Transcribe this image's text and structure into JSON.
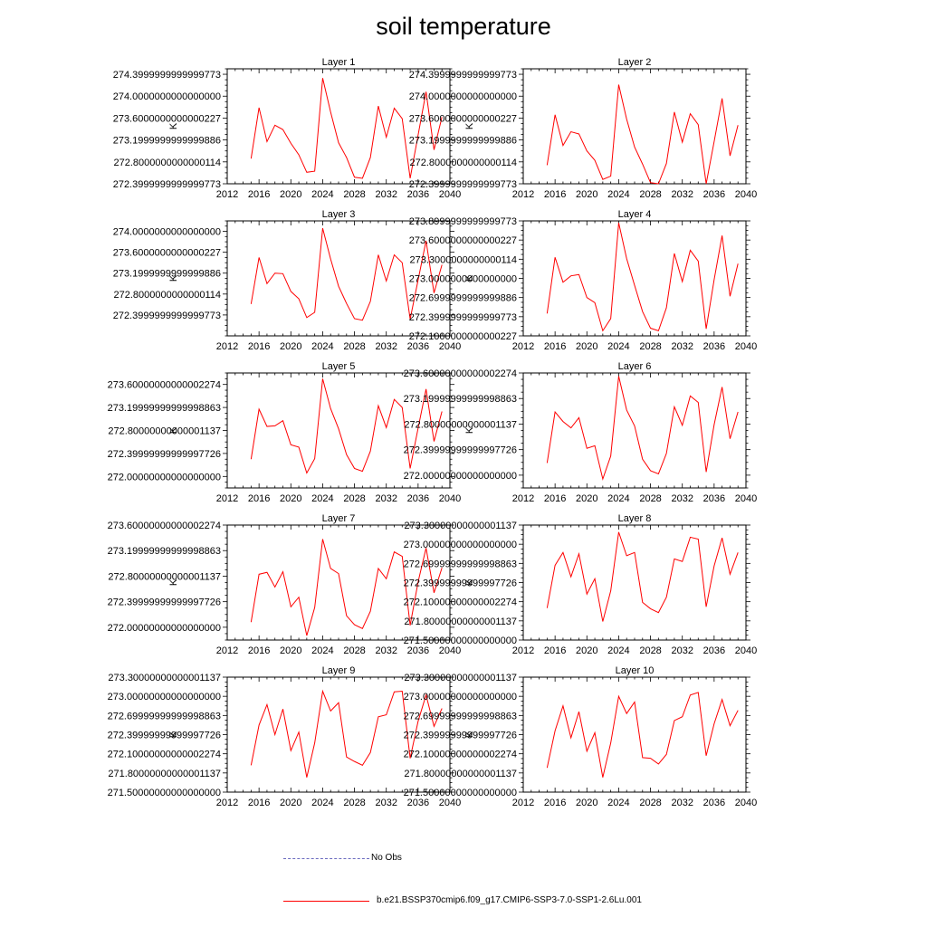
{
  "title": "soil temperature",
  "colors": {
    "model": "#ff0000",
    "obs": "#6b6bbf"
  },
  "legend": [
    {
      "label": "No Obs",
      "style": "dashed",
      "color": "#6b6bbf"
    },
    {
      "label": "b.e21.BSSP370cmip6.f09_g17.CMIP6-SSP3-7.0-SSP1-2.6Lu.001",
      "style": "solid",
      "color": "#ff0000"
    }
  ],
  "chart_data": [
    {
      "type": "line",
      "title": "Layer 1",
      "ylabel": "K",
      "xlim": [
        2012,
        2040
      ],
      "xticks": [
        2012,
        2016,
        2020,
        2024,
        2028,
        2032,
        2036,
        2040
      ],
      "ylim": [
        272.4,
        274.5
      ],
      "yticks": [
        272.4,
        272.8,
        273.2,
        273.6,
        274.0,
        274.4
      ],
      "x": [
        2015,
        2016,
        2017,
        2018,
        2019,
        2020,
        2021,
        2022,
        2023,
        2024,
        2025,
        2026,
        2027,
        2028,
        2029,
        2030,
        2031,
        2032,
        2033,
        2034,
        2035,
        2036,
        2037,
        2038,
        2039
      ],
      "series": [
        {
          "values": [
            272.86,
            273.79,
            273.17,
            273.47,
            273.39,
            273.14,
            272.93,
            272.61,
            272.63,
            274.33,
            273.71,
            273.15,
            272.88,
            272.52,
            272.5,
            272.88,
            273.82,
            273.25,
            273.78,
            273.59,
            272.5,
            273.29,
            274.08,
            273.02,
            273.62
          ]
        }
      ]
    },
    {
      "type": "line",
      "title": "Layer 2",
      "ylabel": "K",
      "xlim": [
        2012,
        2040
      ],
      "xticks": [
        2012,
        2016,
        2020,
        2024,
        2028,
        2032,
        2036,
        2040
      ],
      "ylim": [
        272.4,
        274.5
      ],
      "yticks": [
        272.4,
        272.8,
        273.2,
        273.6,
        274.0,
        274.4
      ],
      "x": [
        2015,
        2016,
        2017,
        2018,
        2019,
        2020,
        2021,
        2022,
        2023,
        2024,
        2025,
        2026,
        2027,
        2028,
        2029,
        2030,
        2031,
        2032,
        2033,
        2034,
        2035,
        2036,
        2037,
        2038,
        2039
      ],
      "series": [
        {
          "values": [
            272.74,
            273.66,
            273.1,
            273.35,
            273.31,
            273.0,
            272.83,
            272.48,
            272.54,
            274.21,
            273.58,
            273.07,
            272.76,
            272.42,
            272.4,
            272.77,
            273.71,
            273.16,
            273.68,
            273.48,
            272.4,
            273.17,
            273.96,
            272.91,
            273.47
          ]
        }
      ]
    },
    {
      "type": "line",
      "title": "Layer 3",
      "ylabel": "K",
      "xlim": [
        2012,
        2040
      ],
      "xticks": [
        2012,
        2016,
        2020,
        2024,
        2028,
        2032,
        2036,
        2040
      ],
      "ylim": [
        272.0,
        274.2
      ],
      "yticks": [
        272.4,
        272.8,
        273.2,
        273.6,
        274.0
      ],
      "x": [
        2015,
        2016,
        2017,
        2018,
        2019,
        2020,
        2021,
        2022,
        2023,
        2024,
        2025,
        2026,
        2027,
        2028,
        2029,
        2030,
        2031,
        2032,
        2033,
        2034,
        2035,
        2036,
        2037,
        2038,
        2039
      ],
      "series": [
        {
          "values": [
            272.61,
            273.5,
            273.0,
            273.2,
            273.19,
            272.85,
            272.71,
            272.35,
            272.45,
            274.06,
            273.47,
            272.95,
            272.62,
            272.33,
            272.3,
            272.66,
            273.55,
            273.05,
            273.55,
            273.4,
            272.32,
            273.07,
            273.82,
            272.82,
            273.36
          ]
        }
      ]
    },
    {
      "type": "line",
      "title": "Layer 4",
      "ylabel": "K",
      "xlim": [
        2012,
        2040
      ],
      "xticks": [
        2012,
        2016,
        2020,
        2024,
        2028,
        2032,
        2036,
        2040
      ],
      "ylim": [
        272.1,
        273.9
      ],
      "yticks": [
        272.1,
        272.4,
        272.7,
        273.0,
        273.3,
        273.6,
        273.9
      ],
      "x": [
        2015,
        2016,
        2017,
        2018,
        2019,
        2020,
        2021,
        2022,
        2023,
        2024,
        2025,
        2026,
        2027,
        2028,
        2029,
        2030,
        2031,
        2032,
        2033,
        2034,
        2035,
        2036,
        2037,
        2038,
        2039
      ],
      "series": [
        {
          "values": [
            272.45,
            273.33,
            272.94,
            273.04,
            273.06,
            272.7,
            272.62,
            272.18,
            272.37,
            273.87,
            273.31,
            272.89,
            272.48,
            272.22,
            272.18,
            272.54,
            273.39,
            272.95,
            273.44,
            273.27,
            272.21,
            272.98,
            273.67,
            272.72,
            273.23
          ]
        }
      ]
    },
    {
      "type": "line",
      "title": "Layer 5",
      "ylabel": "K",
      "xlim": [
        2012,
        2040
      ],
      "xticks": [
        2012,
        2016,
        2020,
        2024,
        2028,
        2032,
        2036,
        2040
      ],
      "ylim": [
        271.8,
        273.8
      ],
      "yticks": [
        272.0,
        272.4,
        272.8,
        273.2,
        273.6
      ],
      "x": [
        2015,
        2016,
        2017,
        2018,
        2019,
        2020,
        2021,
        2022,
        2023,
        2024,
        2025,
        2026,
        2027,
        2028,
        2029,
        2030,
        2031,
        2032,
        2033,
        2034,
        2035,
        2036,
        2037,
        2038,
        2039
      ],
      "series": [
        {
          "values": [
            272.3,
            273.17,
            272.87,
            272.88,
            272.97,
            272.55,
            272.51,
            272.06,
            272.31,
            273.7,
            273.18,
            272.83,
            272.38,
            272.14,
            272.09,
            272.44,
            273.23,
            272.85,
            273.34,
            273.2,
            272.14,
            272.84,
            273.52,
            272.61,
            273.13
          ]
        }
      ]
    },
    {
      "type": "line",
      "title": "Layer 6",
      "ylabel": "K",
      "xlim": [
        2012,
        2040
      ],
      "xticks": [
        2012,
        2016,
        2020,
        2024,
        2028,
        2032,
        2036,
        2040
      ],
      "ylim": [
        271.8,
        273.6
      ],
      "yticks": [
        272.0,
        272.4,
        272.8,
        273.2,
        273.6
      ],
      "x": [
        2015,
        2016,
        2017,
        2018,
        2019,
        2020,
        2021,
        2022,
        2023,
        2024,
        2025,
        2026,
        2027,
        2028,
        2029,
        2030,
        2031,
        2032,
        2033,
        2034,
        2035,
        2036,
        2037,
        2038,
        2039
      ],
      "series": [
        {
          "values": [
            272.19,
            272.99,
            272.84,
            272.74,
            272.9,
            272.42,
            272.46,
            271.94,
            272.3,
            273.55,
            273.02,
            272.77,
            272.25,
            272.07,
            272.02,
            272.34,
            273.07,
            272.78,
            273.24,
            273.14,
            272.05,
            272.79,
            273.38,
            272.57,
            272.99
          ]
        }
      ]
    },
    {
      "type": "line",
      "title": "Layer 7",
      "ylabel": "K",
      "xlim": [
        2012,
        2040
      ],
      "xticks": [
        2012,
        2016,
        2020,
        2024,
        2028,
        2032,
        2036,
        2040
      ],
      "ylim": [
        271.8,
        273.6
      ],
      "yticks": [
        272.0,
        272.4,
        272.8,
        273.2,
        273.6
      ],
      "x": [
        2015,
        2016,
        2017,
        2018,
        2019,
        2020,
        2021,
        2022,
        2023,
        2024,
        2025,
        2026,
        2027,
        2028,
        2029,
        2030,
        2031,
        2032,
        2033,
        2034,
        2035,
        2036,
        2037,
        2038,
        2039
      ],
      "series": [
        {
          "values": [
            272.08,
            272.83,
            272.86,
            272.63,
            272.87,
            272.32,
            272.47,
            271.87,
            272.31,
            273.38,
            272.92,
            272.84,
            272.18,
            272.04,
            271.98,
            272.25,
            272.92,
            272.76,
            273.18,
            273.11,
            272.03,
            272.71,
            273.24,
            272.54,
            272.93
          ]
        }
      ]
    },
    {
      "type": "line",
      "title": "Layer 8",
      "ylabel": "K",
      "xlim": [
        2012,
        2040
      ],
      "xticks": [
        2012,
        2016,
        2020,
        2024,
        2028,
        2032,
        2036,
        2040
      ],
      "ylim": [
        271.5,
        273.3
      ],
      "yticks": [
        271.5,
        271.8,
        272.1,
        272.4,
        272.7,
        273.0,
        273.3
      ],
      "x": [
        2015,
        2016,
        2017,
        2018,
        2019,
        2020,
        2021,
        2022,
        2023,
        2024,
        2025,
        2026,
        2027,
        2028,
        2029,
        2030,
        2031,
        2032,
        2033,
        2034,
        2035,
        2036,
        2037,
        2038,
        2039
      ],
      "series": [
        {
          "values": [
            272.0,
            272.67,
            272.87,
            272.49,
            272.85,
            272.22,
            272.46,
            271.79,
            272.27,
            273.19,
            272.82,
            272.87,
            272.09,
            271.99,
            271.93,
            272.17,
            272.77,
            272.73,
            273.11,
            273.08,
            272.02,
            272.66,
            273.1,
            272.53,
            272.87
          ]
        }
      ]
    },
    {
      "type": "line",
      "title": "Layer 9",
      "ylabel": "K",
      "xlim": [
        2012,
        2040
      ],
      "xticks": [
        2012,
        2016,
        2020,
        2024,
        2028,
        2032,
        2036,
        2040
      ],
      "ylim": [
        271.5,
        273.3
      ],
      "yticks": [
        271.5,
        271.8,
        272.1,
        272.4,
        272.7,
        273.0,
        273.3
      ],
      "x": [
        2015,
        2016,
        2017,
        2018,
        2019,
        2020,
        2021,
        2022,
        2023,
        2024,
        2025,
        2026,
        2027,
        2028,
        2029,
        2030,
        2031,
        2032,
        2033,
        2034,
        2035,
        2036,
        2037,
        2038,
        2039
      ],
      "series": [
        {
          "values": [
            271.92,
            272.55,
            272.87,
            272.4,
            272.8,
            272.15,
            272.44,
            271.73,
            272.27,
            273.08,
            272.77,
            272.9,
            272.05,
            271.98,
            271.92,
            272.12,
            272.68,
            272.71,
            273.07,
            273.08,
            272.03,
            272.61,
            273.02,
            272.53,
            272.81
          ]
        }
      ]
    },
    {
      "type": "line",
      "title": "Layer 10",
      "ylabel": "K",
      "xlim": [
        2012,
        2040
      ],
      "xticks": [
        2012,
        2016,
        2020,
        2024,
        2028,
        2032,
        2036,
        2040
      ],
      "ylim": [
        271.5,
        273.3
      ],
      "yticks": [
        271.5,
        271.8,
        272.1,
        272.4,
        272.7,
        273.0,
        273.3
      ],
      "x": [
        2015,
        2016,
        2017,
        2018,
        2019,
        2020,
        2021,
        2022,
        2023,
        2024,
        2025,
        2026,
        2027,
        2028,
        2029,
        2030,
        2031,
        2032,
        2033,
        2034,
        2035,
        2036,
        2037,
        2038,
        2039
      ],
      "series": [
        {
          "values": [
            271.88,
            272.46,
            272.85,
            272.35,
            272.76,
            272.14,
            272.43,
            271.73,
            272.27,
            273.0,
            272.73,
            272.91,
            272.04,
            272.03,
            271.94,
            272.09,
            272.62,
            272.68,
            273.02,
            273.06,
            272.07,
            272.57,
            272.95,
            272.54,
            272.78
          ]
        }
      ]
    }
  ]
}
